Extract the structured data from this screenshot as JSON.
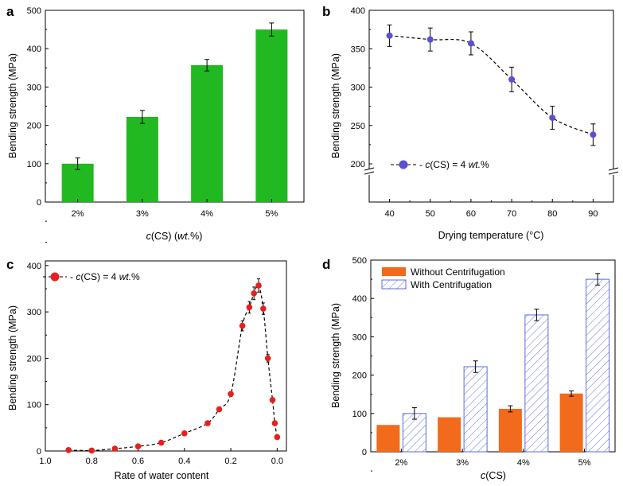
{
  "colors": {
    "green": "#22b822",
    "blue": "#5b4fd6",
    "red": "#e8201c",
    "orange": "#f26a1b",
    "hatch": "#6677dd"
  },
  "chart_data": [
    {
      "panel": "a",
      "type": "bar",
      "xlabel_prefix": "c",
      "xlabel_mid": "(CS) (",
      "xlabel_unit": "wt.",
      "xlabel_suffix": "%)",
      "ylabel": "Bending strength (MPa)",
      "categories": [
        "2%",
        "3%",
        "4%",
        "5%"
      ],
      "values": [
        100,
        222,
        357,
        450
      ],
      "errors": [
        15,
        17,
        15,
        17
      ],
      "ylim": [
        0,
        500
      ],
      "yticks": [
        "0",
        "100",
        "200",
        "300",
        "400",
        "500"
      ]
    },
    {
      "panel": "b",
      "type": "line",
      "xlabel": "Drying temperature (°C)",
      "ylabel": "Bending strength (MPa)",
      "x": [
        40,
        50,
        60,
        70,
        80,
        90
      ],
      "y": [
        367,
        362,
        357,
        310,
        260,
        238
      ],
      "errors": [
        14,
        15,
        15,
        16,
        15,
        14
      ],
      "xlim": [
        35,
        95
      ],
      "ylim": [
        200,
        400
      ],
      "xticks": [
        "40",
        "50",
        "60",
        "70",
        "80",
        "90"
      ],
      "yticks": [
        "200",
        "250",
        "300",
        "350",
        "400"
      ],
      "legend_prefix": "- ",
      "legend_c": "c",
      "legend_mid": "(CS) = 4 ",
      "legend_unit": "wt.",
      "legend_suffix": "%"
    },
    {
      "panel": "c",
      "type": "line",
      "xlabel": "Rate of water content",
      "ylabel": "Bending strength (MPa)",
      "x": [
        0.9,
        0.8,
        0.7,
        0.6,
        0.5,
        0.4,
        0.3,
        0.25,
        0.2,
        0.15,
        0.12,
        0.1,
        0.08,
        0.06,
        0.04,
        0.02,
        0.01,
        0.0
      ],
      "y": [
        2,
        1,
        5,
        10,
        18,
        38,
        60,
        90,
        123,
        270,
        310,
        340,
        357,
        307,
        200,
        110,
        60,
        30
      ],
      "xlim": [
        1.0,
        -0.04
      ],
      "ylim": [
        0,
        410
      ],
      "xticks": [
        "1.0",
        "0.8",
        "0.6",
        "0.4",
        "0.2",
        "0.0"
      ],
      "yticks": [
        "0",
        "100",
        "200",
        "300",
        "400"
      ],
      "legend_prefix": "- ",
      "legend_c": "c",
      "legend_mid": "(CS) = 4 ",
      "legend_unit": "wt.",
      "legend_suffix": "%"
    },
    {
      "panel": "d",
      "type": "bar",
      "xlabel_prefix": "c",
      "xlabel_mid": "(CS)",
      "ylabel": "Bending strength (MPa)",
      "categories": [
        "2%",
        "3%",
        "4%",
        "5%"
      ],
      "series": [
        {
          "name": "Without Centrifugation",
          "values": [
            70,
            90,
            112,
            152
          ],
          "errors": [
            0,
            0,
            8,
            7
          ]
        },
        {
          "name": "With Centrifugation",
          "values": [
            100,
            222,
            357,
            450
          ],
          "errors": [
            15,
            15,
            15,
            15
          ]
        }
      ],
      "ylim": [
        0,
        500
      ],
      "yticks": [
        "0",
        "100",
        "200",
        "300",
        "400",
        "500"
      ]
    }
  ]
}
